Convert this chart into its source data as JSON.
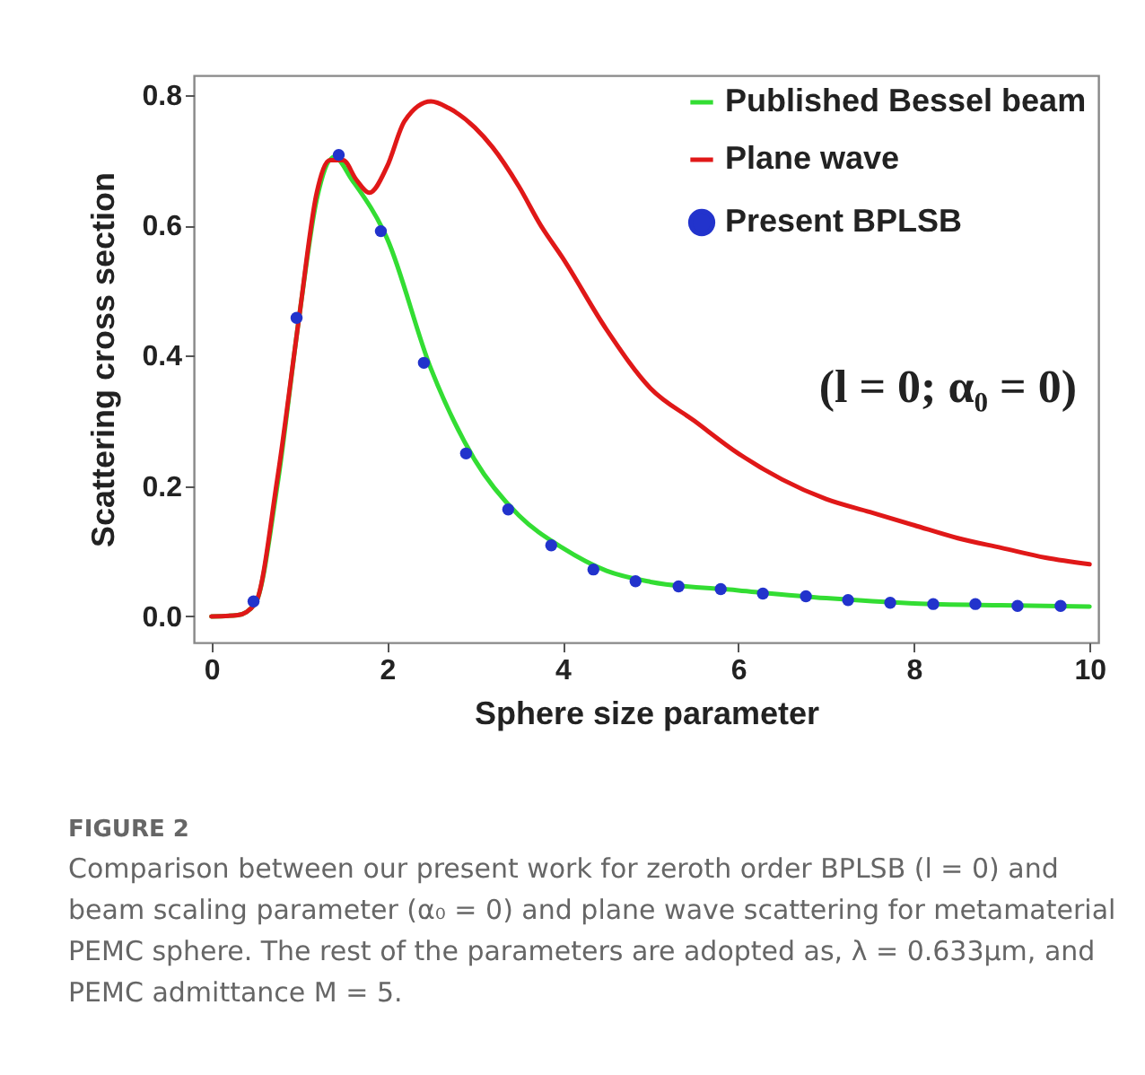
{
  "chart_data": {
    "type": "line",
    "xlabel": "Sphere size parameter",
    "ylabel": "Scattering cross section",
    "xlim": [
      -0.2,
      10.1
    ],
    "ylim": [
      -0.04,
      0.83
    ],
    "xticks": [
      0,
      2,
      4,
      6,
      8,
      10
    ],
    "yticks": [
      {
        "value": 0,
        "label": "0.0"
      },
      0.2,
      0.4,
      0.6,
      0.8
    ],
    "grid": false,
    "legend": "top right",
    "series": [
      {
        "name": "Published Bessel beam",
        "color": "#33dd33",
        "type": "line",
        "line_style": "solid",
        "marker": "none",
        "x": [
          0,
          0.3,
          0.5,
          0.75,
          1.0,
          1.2,
          1.4,
          1.6,
          2.0,
          2.5,
          3.0,
          3.5,
          4.0,
          4.5,
          5.0,
          6.0,
          7.0,
          8.0,
          9.0,
          10.0
        ],
        "values": [
          0,
          0.002,
          0.02,
          0.2,
          0.46,
          0.64,
          0.705,
          0.67,
          0.58,
          0.38,
          0.24,
          0.155,
          0.105,
          0.07,
          0.053,
          0.04,
          0.028,
          0.02,
          0.017,
          0.015
        ]
      },
      {
        "name": "Plane wave",
        "color": "#e01818",
        "type": "line",
        "line_style": "solid",
        "marker": "none",
        "x": [
          0,
          0.3,
          0.5,
          0.75,
          1.0,
          1.2,
          1.35,
          1.5,
          1.65,
          1.8,
          2.0,
          2.2,
          2.5,
          2.7,
          3.0,
          3.2,
          3.5,
          3.75,
          4.0,
          4.5,
          5.0,
          5.5,
          6.0,
          6.5,
          7.0,
          7.5,
          8.0,
          8.5,
          9.0,
          9.5,
          10.0
        ],
        "values": [
          0,
          0.002,
          0.02,
          0.21,
          0.46,
          0.65,
          0.7,
          0.7,
          0.67,
          0.65,
          0.69,
          0.76,
          0.79,
          0.78,
          0.75,
          0.72,
          0.66,
          0.6,
          0.55,
          0.44,
          0.35,
          0.3,
          0.25,
          0.21,
          0.18,
          0.16,
          0.14,
          0.12,
          0.105,
          0.09,
          0.08
        ]
      },
      {
        "name": "Present BPLSB",
        "color": "#2233cc",
        "type": "scatter",
        "marker": "circle",
        "x": [
          0.48,
          0.97,
          1.45,
          1.93,
          2.42,
          2.9,
          3.38,
          3.87,
          4.35,
          4.83,
          5.32,
          5.8,
          6.28,
          6.77,
          7.25,
          7.73,
          8.22,
          8.7,
          9.18,
          9.67
        ],
        "values": [
          0.023,
          0.458,
          0.708,
          0.591,
          0.389,
          0.25,
          0.164,
          0.109,
          0.072,
          0.054,
          0.046,
          0.042,
          0.035,
          0.031,
          0.025,
          0.021,
          0.019,
          0.019,
          0.016,
          0.016
        ]
      }
    ],
    "annotations": [
      "(l = 0; α₀ = 0)",
      "FIGURE 2",
      "Comparison between our present work for zeroth order BPLSB (l = 0) and beam scaling parameter (α₀ = 0) and plane wave scattering for metamaterial PEMC sphere. The rest of the parameters are adopted as, λ = 0.633μm, and PEMC admittance M = 5."
    ]
  }
}
